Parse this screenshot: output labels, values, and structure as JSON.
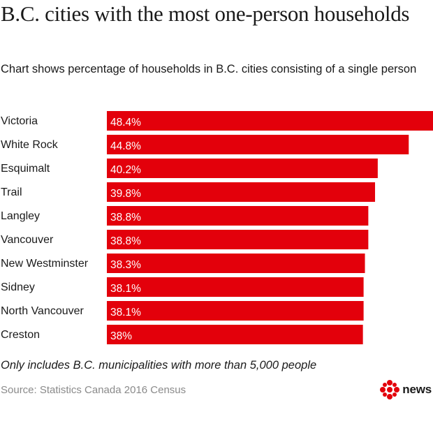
{
  "title": "B.C. cities with the most one-person households",
  "subtitle": "Chart shows percentage of households in B.C. cities consisting of a single person",
  "note": "Only includes B.C. municipalities with more than 5,000 people",
  "source": "Source: Statistics Canada 2016 Census",
  "brand": {
    "name": "news",
    "logo_icon": "cbc-gem-icon"
  },
  "colors": {
    "bar": "#e3000b",
    "text": "#1a1a1a",
    "source": "#8a8a8a"
  },
  "chart_data": {
    "type": "bar",
    "orientation": "horizontal",
    "title": "B.C. cities with the most one-person households",
    "subtitle": "Chart shows percentage of households in B.C. cities consisting of a single person",
    "categories": [
      "Victoria",
      "White Rock",
      "Esquimalt",
      "Trail",
      "Langley",
      "Vancouver",
      "New Westminster",
      "Sidney",
      "North Vancouver",
      "Creston"
    ],
    "values": [
      48.4,
      44.8,
      40.2,
      39.8,
      38.8,
      38.8,
      38.3,
      38.1,
      38.1,
      38
    ],
    "value_labels": [
      "48.4%",
      "44.8%",
      "40.2%",
      "39.8%",
      "38.8%",
      "38.8%",
      "38.3%",
      "38.1%",
      "38.1%",
      "38%"
    ],
    "xlim": [
      0,
      48.4
    ],
    "grid": false,
    "legend": "none"
  }
}
